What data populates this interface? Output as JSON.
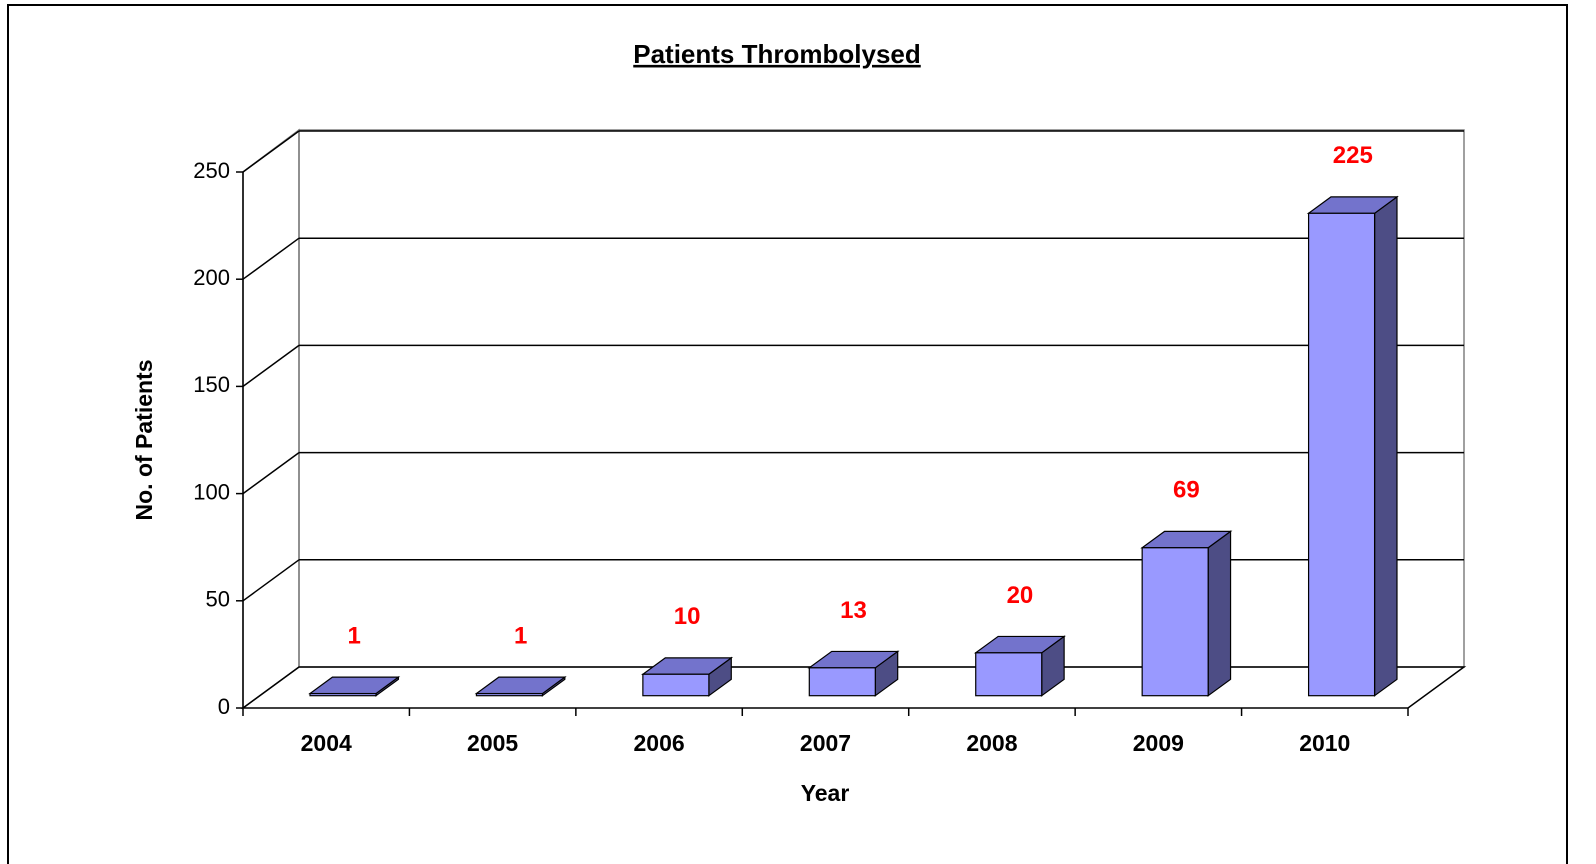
{
  "chart_data": {
    "type": "bar3d",
    "title": "Patients Thrombolysed",
    "x_label": "Year",
    "y_label": "No. of Patients",
    "categories": [
      "2004",
      "2005",
      "2006",
      "2007",
      "2008",
      "2009",
      "2010"
    ],
    "values": [
      1,
      1,
      10,
      13,
      20,
      69,
      225
    ],
    "color": "#9999ff",
    "label_color": "#ff0000",
    "ylim": [
      0,
      250
    ],
    "yticks": [
      0,
      50,
      100,
      150,
      200,
      250
    ],
    "grid": true
  }
}
